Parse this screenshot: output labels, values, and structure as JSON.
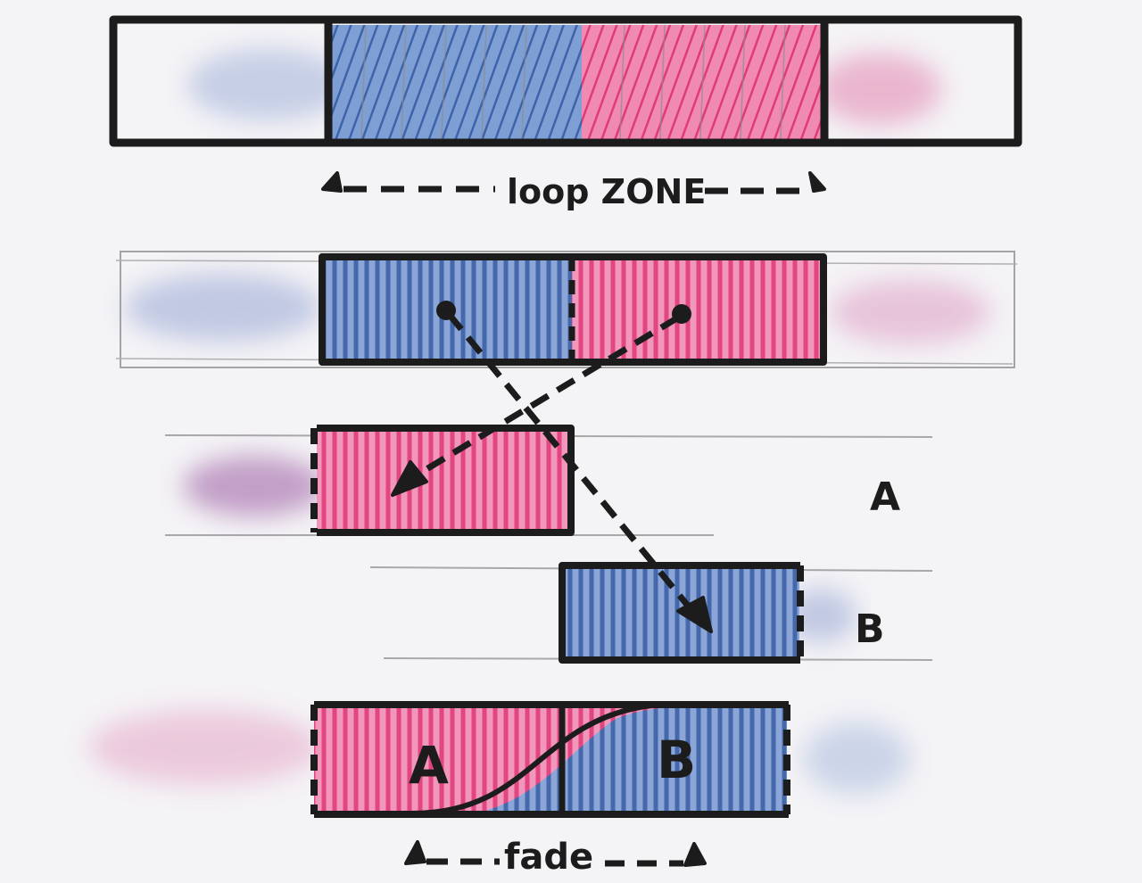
{
  "labels": {
    "loop_zone": "loop ZONE",
    "track_a": "A",
    "track_b": "B",
    "fade_a": "A",
    "fade_b": "B",
    "fade": "fade"
  },
  "colors": {
    "segment_a": "#e8457e",
    "segment_b": "#4a72b8",
    "ink": "#1c1c1c",
    "pencil": "#9a9a9a",
    "paper": "#f4f3f6"
  }
}
